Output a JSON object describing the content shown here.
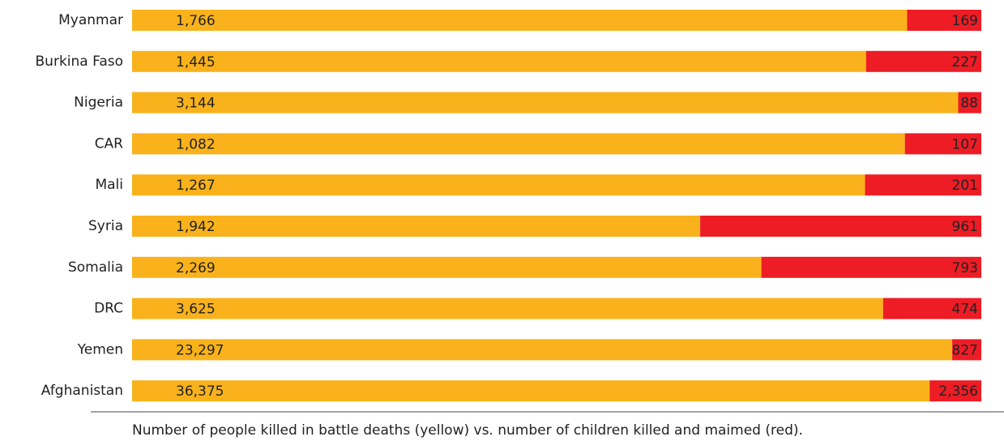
{
  "chart_data": {
    "type": "bar",
    "orientation": "horizontal",
    "stacked": true,
    "normalized": true,
    "categories": [
      "Myanmar",
      "Burkina Faso",
      "Nigeria",
      "CAR",
      "Mali",
      "Syria",
      "Somalia",
      "DRC",
      "Yemen",
      "Afghanistan"
    ],
    "series": [
      {
        "color": "#f9b21b",
        "label_color": "#c0501f",
        "values": [
          1766,
          1445,
          3144,
          1082,
          1267,
          1942,
          2269,
          3625,
          23297,
          36375
        ],
        "value_labels": [
          "1,766",
          "1,445",
          "3,144",
          "1,082",
          "1,267",
          "1,942",
          "2,269",
          "3,625",
          "23,297",
          "36,375"
        ]
      },
      {
        "color": "#ee1c25",
        "label_color": "#ffffff",
        "values": [
          169,
          227,
          88,
          107,
          201,
          961,
          793,
          474,
          827,
          2356
        ],
        "value_labels": [
          "169",
          "227",
          "88",
          "107",
          "201",
          "961",
          "793",
          "474",
          "827",
          "2,356"
        ]
      }
    ],
    "caption": "Number of people killed in battle deaths (yellow) vs. number of children killed and maimed (red)."
  }
}
